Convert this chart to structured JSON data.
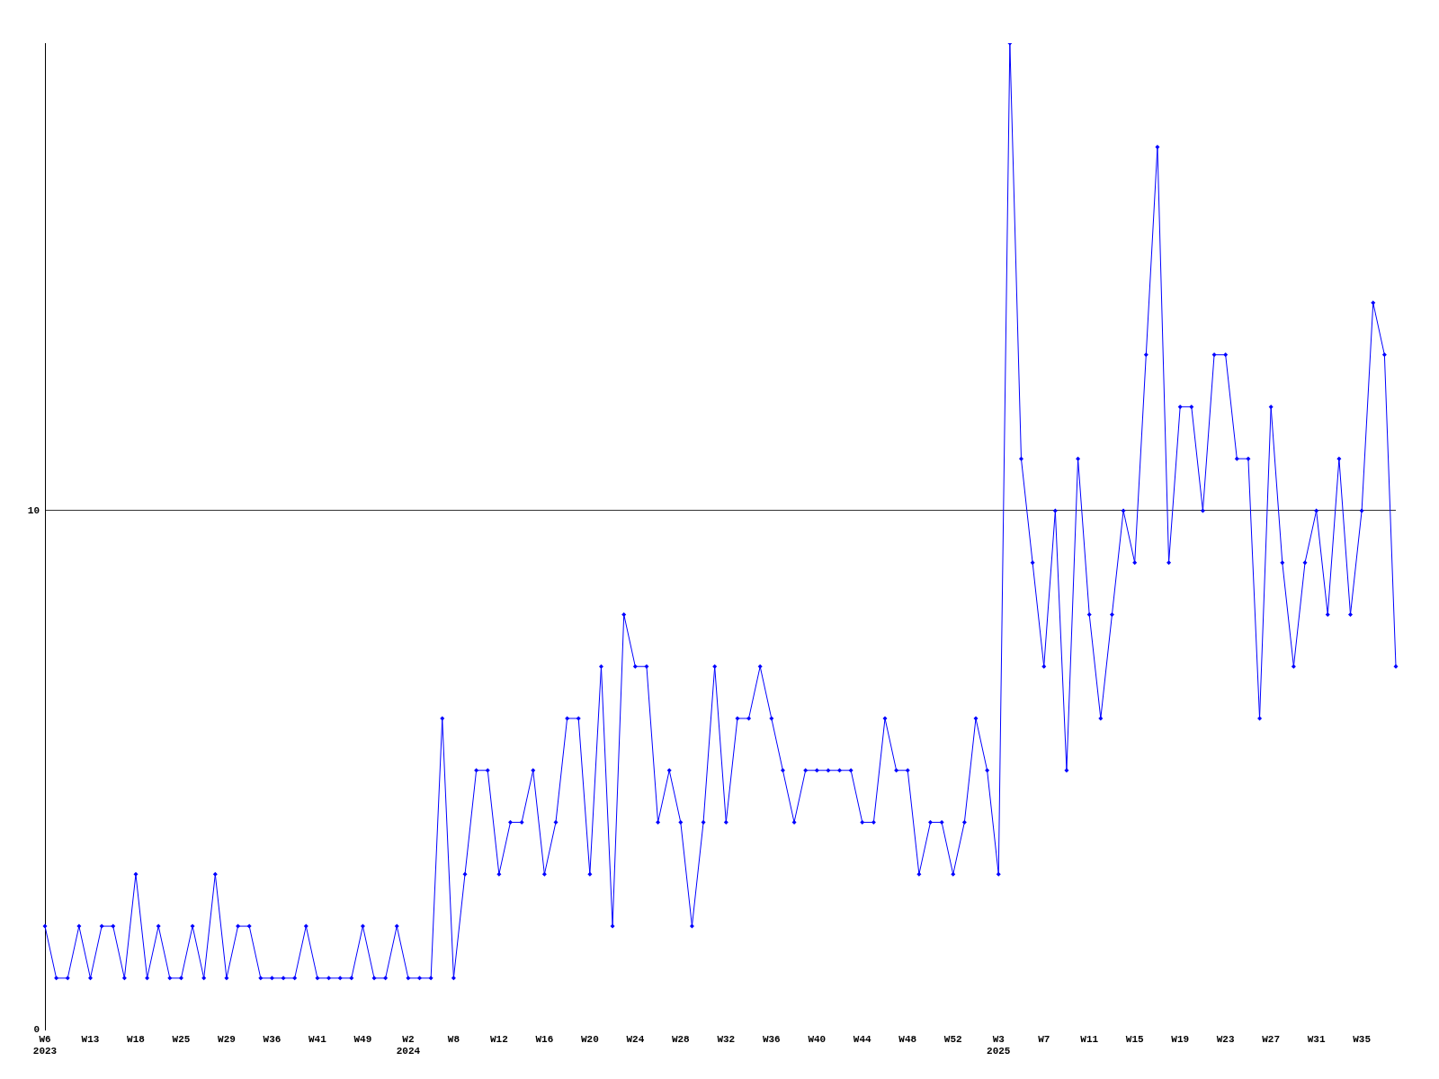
{
  "chart_data": {
    "type": "line",
    "categories": [
      "W6\n2023",
      null,
      null,
      null,
      "W13",
      null,
      null,
      null,
      "W18",
      null,
      null,
      null,
      "W25",
      null,
      null,
      null,
      "W29",
      null,
      null,
      null,
      "W36",
      null,
      null,
      null,
      "W41",
      null,
      null,
      null,
      "W49",
      null,
      null,
      null,
      "W2\n2024",
      null,
      null,
      null,
      "W8",
      null,
      null,
      null,
      "W12",
      null,
      null,
      null,
      "W16",
      null,
      null,
      null,
      "W20",
      null,
      null,
      null,
      "W24",
      null,
      null,
      null,
      "W28",
      null,
      null,
      null,
      "W32",
      null,
      null,
      null,
      "W36",
      null,
      null,
      null,
      "W40",
      null,
      null,
      null,
      "W44",
      null,
      null,
      null,
      "W48",
      null,
      null,
      null,
      "W52",
      null,
      null,
      null,
      "W3\n2025",
      null,
      null,
      null,
      "W7",
      null,
      null,
      null,
      "W11",
      null,
      null,
      null,
      "W15",
      null,
      null,
      null,
      "W19",
      null,
      null,
      null,
      "W23",
      null,
      null,
      null,
      "W27",
      null,
      null,
      null,
      "W31",
      null,
      null,
      null,
      "W35",
      null,
      null,
      null
    ],
    "series": [
      {
        "color": "#0000ff",
        "values": [
          2,
          1,
          1,
          2,
          1,
          2,
          2,
          1,
          3,
          1,
          2,
          1,
          1,
          2,
          1,
          3,
          1,
          2,
          2,
          1,
          1,
          1,
          1,
          2,
          1,
          1,
          1,
          1,
          2,
          1,
          1,
          2,
          1,
          1,
          1,
          6,
          1,
          3,
          5,
          5,
          3,
          4,
          4,
          5,
          3,
          4,
          6,
          6,
          3,
          7,
          2,
          8,
          7,
          7,
          4,
          5,
          4,
          2,
          4,
          7,
          4,
          6,
          6,
          7,
          6,
          5,
          4,
          5,
          5,
          5,
          5,
          5,
          4,
          4,
          6,
          5,
          5,
          3,
          4,
          4,
          3,
          4,
          6,
          5,
          3,
          19,
          11,
          9,
          7,
          10,
          5,
          11,
          8,
          6,
          8,
          10,
          9,
          13,
          17,
          9,
          12,
          12,
          10,
          13,
          13,
          11,
          11,
          6,
          12,
          9,
          7,
          9,
          10,
          8,
          11,
          8,
          10,
          14,
          13,
          7
        ]
      }
    ],
    "ylim": [
      0,
      19
    ],
    "yticks": [
      0,
      10
    ],
    "grid": "y",
    "marker": "diamond",
    "legend": false
  }
}
